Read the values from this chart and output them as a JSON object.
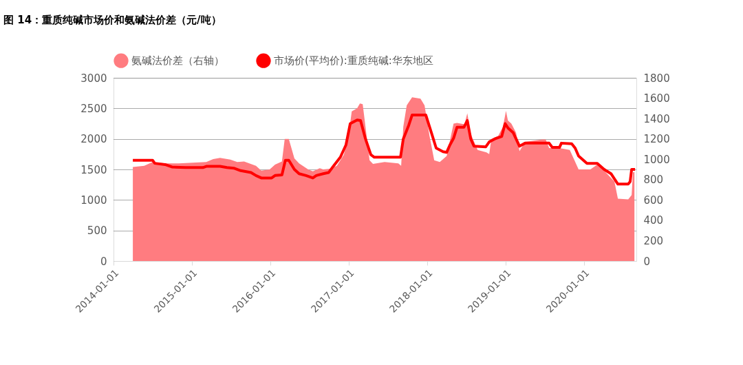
{
  "chart_data": {
    "type": "area",
    "title": "图 14：重质纯碱市场价和氨碱法价差（元/吨）",
    "xlim": [
      "2014-01-01",
      "2020-08-31"
    ],
    "xticks": [
      "2014-01-01",
      "2015-01-01",
      "2016-01-01",
      "2017-01-01",
      "2018-01-01",
      "2019-01-01",
      "2020-01-01"
    ],
    "ylim": [
      0,
      3000
    ],
    "yticks": [
      0,
      500,
      1000,
      1500,
      2000,
      2500,
      3000
    ],
    "y2lim": [
      0,
      1800
    ],
    "y2ticks": [
      0,
      200,
      400,
      600,
      800,
      1000,
      1200,
      1400,
      1600,
      1800
    ],
    "grid": "y",
    "legend": "top",
    "series": [
      {
        "name": "氨碱法价差（右轴）",
        "axis": "y2",
        "color": "#ff7c80",
        "x": [
          "2014-04-01",
          "2014-05-24",
          "2014-07-02",
          "2014-08-29",
          "2014-11-01",
          "2015-03-09",
          "2015-04-10",
          "2015-05-12",
          "2015-06-29",
          "2015-07-31",
          "2015-09-01",
          "2015-10-26",
          "2015-11-20",
          "2015-12-29",
          "2016-01-23",
          "2016-02-24",
          "2016-03-08",
          "2016-03-27",
          "2016-04-22",
          "2016-05-14",
          "2016-06-25",
          "2016-07-17",
          "2016-08-18",
          "2016-09-03",
          "2016-10-05",
          "2016-11-06",
          "2016-12-08",
          "2016-12-28",
          "2017-01-14",
          "2017-02-08",
          "2017-02-21",
          "2017-03-06",
          "2017-03-19",
          "2017-04-07",
          "2017-04-23",
          "2017-06-16",
          "2017-08-19",
          "2017-09-01",
          "2017-09-11",
          "2017-09-27",
          "2017-10-22",
          "2017-11-30",
          "2017-12-19",
          "2018-01-11",
          "2018-02-02",
          "2018-02-28",
          "2018-04-01",
          "2018-05-03",
          "2018-05-19",
          "2018-06-23",
          "2018-07-06",
          "2018-07-22",
          "2018-08-23",
          "2018-10-03",
          "2018-10-16",
          "2018-10-26",
          "2018-11-27",
          "2018-12-19",
          "2019-01-02",
          "2019-01-11",
          "2019-01-27",
          "2019-02-18",
          "2019-03-06",
          "2019-04-01",
          "2019-06-20",
          "2019-07-06",
          "2019-07-22",
          "2019-09-08",
          "2019-10-26",
          "2019-12-06",
          "2020-01-30",
          "2020-03-02",
          "2020-04-03",
          "2020-05-21",
          "2020-06-06",
          "2020-07-24",
          "2020-08-09",
          "2020-08-15",
          "2020-08-22"
        ],
        "values": [
          924,
          936,
          972,
          960,
          960,
          972,
          1002,
          1014,
          996,
          972,
          978,
          936,
          888,
          900,
          948,
          978,
          1200,
          1200,
          1008,
          960,
          900,
          882,
          912,
          900,
          906,
          936,
          1044,
          1200,
          1470,
          1500,
          1548,
          1542,
          1320,
          990,
          954,
          972,
          960,
          936,
          1320,
          1530,
          1608,
          1596,
          1530,
          1230,
          990,
          972,
          1032,
          1350,
          1356,
          1344,
          1452,
          1248,
          1092,
          1068,
          1050,
          1200,
          1230,
          1320,
          1476,
          1380,
          1350,
          1260,
          1080,
          1170,
          1194,
          1194,
          1110,
          1110,
          1092,
          900,
          900,
          948,
          888,
          780,
          612,
          606,
          648,
          870,
          876
        ]
      },
      {
        "name": "市场价(平均价):重质纯碱:华东地区",
        "type": "line",
        "axis": "y",
        "color": "#ff0000",
        "x": [
          "2014-04-01",
          "2014-07-02",
          "2014-07-12",
          "2014-08-29",
          "2014-09-30",
          "2014-12-03",
          "2015-02-21",
          "2015-03-09",
          "2015-05-12",
          "2015-06-13",
          "2015-07-15",
          "2015-08-16",
          "2015-10-03",
          "2015-10-26",
          "2015-11-20",
          "2016-01-07",
          "2016-01-23",
          "2016-02-24",
          "2016-03-11",
          "2016-03-27",
          "2016-04-22",
          "2016-05-14",
          "2016-06-15",
          "2016-07-17",
          "2016-08-02",
          "2016-09-03",
          "2016-09-29",
          "2016-10-22",
          "2016-11-22",
          "2016-12-18",
          "2017-01-07",
          "2017-02-08",
          "2017-02-24",
          "2017-03-19",
          "2017-04-13",
          "2017-04-29",
          "2017-08-29",
          "2017-09-11",
          "2017-10-06",
          "2017-10-22",
          "2017-12-25",
          "2018-01-20",
          "2018-02-11",
          "2018-03-15",
          "2018-04-01",
          "2018-04-16",
          "2018-05-03",
          "2018-05-19",
          "2018-06-20",
          "2018-07-06",
          "2018-07-22",
          "2018-08-06",
          "2018-09-30",
          "2018-10-16",
          "2018-11-11",
          "2018-12-13",
          "2018-12-29",
          "2019-01-11",
          "2019-02-05",
          "2019-03-06",
          "2019-04-01",
          "2019-05-19",
          "2019-07-22",
          "2019-08-06",
          "2019-09-08",
          "2019-09-17",
          "2019-11-04",
          "2019-11-20",
          "2019-12-06",
          "2020-01-14",
          "2020-03-02",
          "2020-04-03",
          "2020-05-05",
          "2020-06-06",
          "2020-07-24",
          "2020-08-02",
          "2020-08-09",
          "2020-08-25"
        ],
        "values": [
          1650,
          1650,
          1600,
          1580,
          1540,
          1530,
          1530,
          1550,
          1550,
          1530,
          1520,
          1480,
          1450,
          1400,
          1360,
          1360,
          1400,
          1410,
          1650,
          1650,
          1500,
          1430,
          1400,
          1360,
          1400,
          1430,
          1450,
          1560,
          1700,
          1900,
          2250,
          2310,
          2300,
          2000,
          1740,
          1700,
          1700,
          2000,
          2220,
          2390,
          2390,
          2100,
          1850,
          1790,
          1780,
          1900,
          2010,
          2190,
          2190,
          2300,
          2000,
          1880,
          1870,
          1950,
          2000,
          2040,
          2250,
          2180,
          2100,
          1880,
          1930,
          1930,
          1930,
          1860,
          1860,
          1930,
          1920,
          1850,
          1720,
          1600,
          1600,
          1500,
          1430,
          1260,
          1260,
          1300,
          1500,
          1500
        ]
      }
    ]
  }
}
